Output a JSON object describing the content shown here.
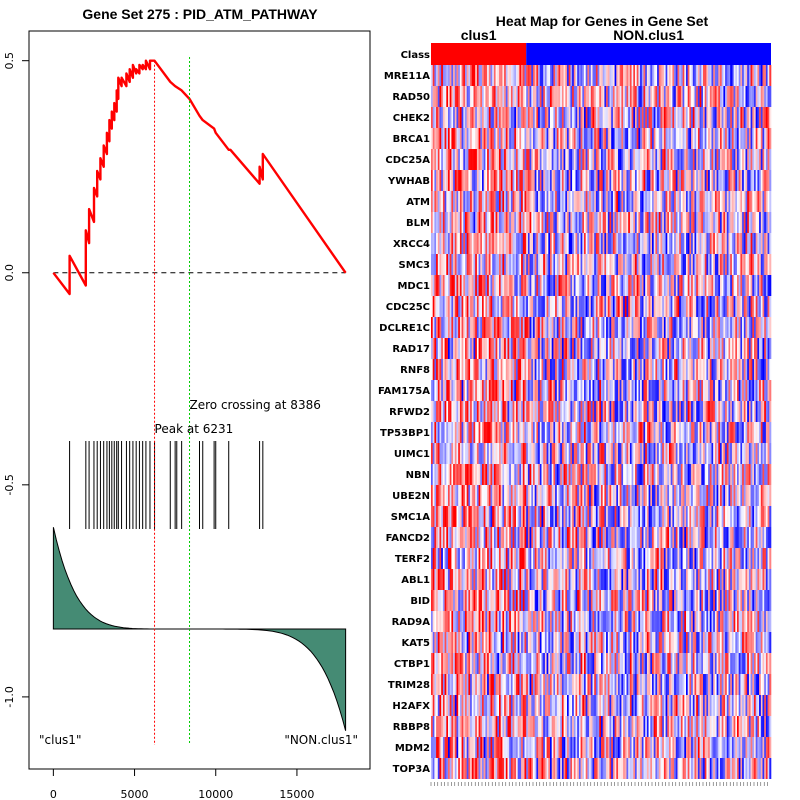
{
  "chart_data": [
    {
      "type": "line",
      "title": "Gene Set  275 : PID_ATM_PATHWAY",
      "xlabel": "",
      "ylabel": "",
      "xlim": [
        -1500,
        19500
      ],
      "ylim": [
        -1.17,
        0.57
      ],
      "x_ticks": [
        0,
        5000,
        10000,
        15000
      ],
      "y_ticks": [
        0.5,
        0.0,
        -0.5,
        -1.0
      ],
      "x_tick_labels": [
        "0",
        "5000",
        "10000",
        "15000"
      ],
      "y_tick_labels": [
        "0.5",
        "0.0",
        "-0.5",
        "-1.0"
      ],
      "n_genes": 18000,
      "peak_at": 6231,
      "zero_crossing_at": 8386,
      "peak_label": "Peak at 6231",
      "zero_label": "Zero crossing at 8386",
      "left_group_label": "\"clus1\"",
      "right_group_label": "\"NON.clus1\"",
      "running_es": {
        "x": [
          0,
          1000,
          1000,
          2000,
          2000,
          2200,
          2200,
          2500,
          2500,
          2700,
          2700,
          2900,
          2900,
          3100,
          3100,
          3300,
          3300,
          3450,
          3450,
          3600,
          3600,
          3750,
          3750,
          3900,
          3900,
          4000,
          4000,
          4200,
          4200,
          4500,
          4500,
          4700,
          4700,
          4900,
          4900,
          5100,
          5100,
          5300,
          5300,
          5500,
          5500,
          5700,
          5700,
          5950,
          5950,
          6231,
          7200,
          7500,
          7900,
          8386,
          9000,
          9200,
          9900,
          10000,
          10800,
          10900,
          12700,
          12700,
          12900,
          12900,
          18000
        ],
        "y": [
          0.0,
          -0.05,
          0.04,
          -0.03,
          0.1,
          0.07,
          0.15,
          0.12,
          0.2,
          0.18,
          0.24,
          0.22,
          0.27,
          0.25,
          0.3,
          0.28,
          0.33,
          0.31,
          0.36,
          0.34,
          0.38,
          0.36,
          0.4,
          0.38,
          0.43,
          0.41,
          0.46,
          0.44,
          0.46,
          0.44,
          0.47,
          0.45,
          0.48,
          0.46,
          0.49,
          0.47,
          0.48,
          0.47,
          0.49,
          0.48,
          0.49,
          0.48,
          0.5,
          0.48,
          0.5,
          0.5,
          0.45,
          0.44,
          0.43,
          0.41,
          0.37,
          0.36,
          0.34,
          0.33,
          0.29,
          0.29,
          0.21,
          0.25,
          0.22,
          0.28,
          0.0
        ]
      },
      "hit_positions": [
        1000,
        2000,
        2200,
        2500,
        2700,
        2900,
        3100,
        3300,
        3450,
        3600,
        3750,
        3900,
        4000,
        4200,
        4500,
        4700,
        4900,
        5100,
        5300,
        5500,
        5700,
        5950,
        6231,
        7200,
        7500,
        7600,
        7900,
        9000,
        9200,
        9900,
        10000,
        10800,
        12700,
        12900
      ],
      "rank_metric": {
        "y_start": -0.6,
        "y_baseline": -0.84,
        "y_end": -1.08
      },
      "colors": {
        "es_line": "#ff0000",
        "peak_line": "#ff0000",
        "zero_line": "#00cc00",
        "metric_fill": "#458b74",
        "hit_line": "#000000"
      }
    },
    {
      "type": "heatmap",
      "title": "Heat Map for Genes in Gene Set",
      "row_header": "Class",
      "groups": [
        {
          "name": "clus1",
          "color": "#ff0000",
          "fraction": 0.28
        },
        {
          "name": "NON.clus1",
          "color": "#0000ff",
          "fraction": 0.72
        }
      ],
      "genes": [
        "MRE11A",
        "RAD50",
        "CHEK2",
        "BRCA1",
        "CDC25A",
        "YWHAB",
        "ATM",
        "BLM",
        "XRCC4",
        "SMC3",
        "MDC1",
        "CDC25C",
        "DCLRE1C",
        "RAD17",
        "RNF8",
        "FAM175A",
        "RFWD2",
        "TP53BP1",
        "UIMC1",
        "NBN",
        "UBE2N",
        "SMC1A",
        "FANCD2",
        "TERF2",
        "ABL1",
        "BID",
        "RAD9A",
        "KAT5",
        "CTBP1",
        "TRIM28",
        "H2AFX",
        "RBBP8",
        "MDM2",
        "TOP3A"
      ],
      "n_samples": 200,
      "colors": {
        "high": "#ff0000",
        "mid": "#ffffff",
        "low": "#0000ff"
      }
    }
  ]
}
